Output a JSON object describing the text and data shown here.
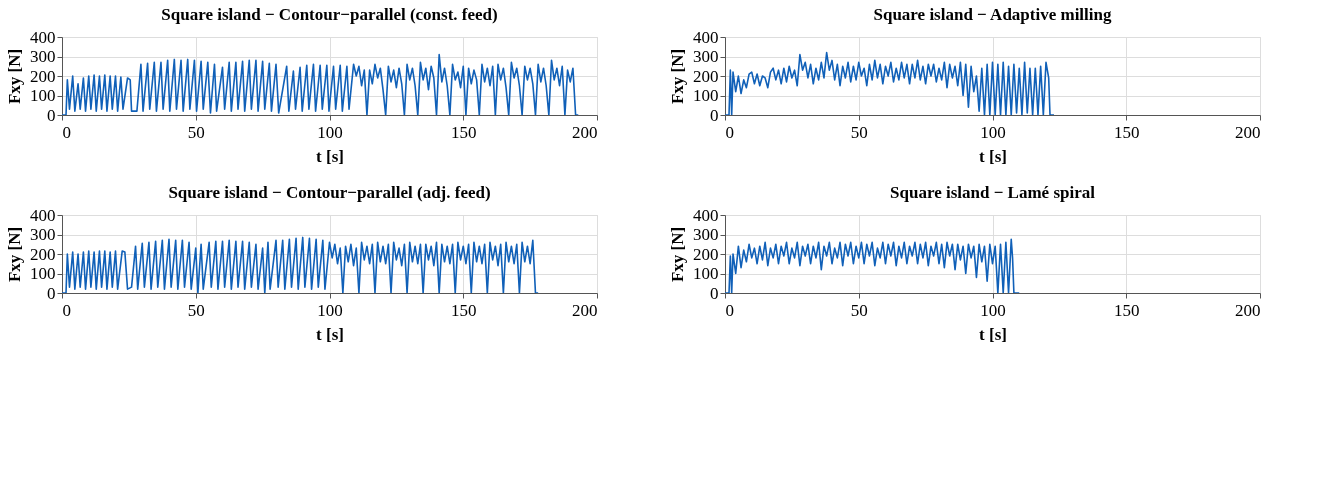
{
  "chart_data": [
    {
      "type": "line",
      "title": "Square island − Contour−parallel (const. feed)",
      "xlabel": "t [s]",
      "ylabel": "Fxy [N]",
      "xlim": [
        0,
        200
      ],
      "xticks": [
        0,
        50,
        100,
        150,
        200
      ],
      "ylim": [
        0,
        400
      ],
      "yticks": [
        0,
        100,
        200,
        300,
        400
      ],
      "grid": true,
      "series": [
        {
          "color": "#1060b8",
          "x": [
            0,
            1.5,
            2,
            2.8,
            4,
            4.8,
            6,
            6.8,
            8,
            8.8,
            10,
            10.8,
            12,
            12.8,
            14,
            14.8,
            16,
            16.8,
            18,
            18.8,
            20,
            20.8,
            22,
            22.8,
            24.5,
            25.5,
            26,
            28,
            29.5,
            30.3,
            32,
            32.8,
            34.5,
            35.3,
            37,
            37.8,
            39.5,
            40.3,
            42,
            42.8,
            44.5,
            45.3,
            47,
            47.8,
            49.5,
            50.3,
            52,
            52.8,
            54.5,
            55.5,
            57,
            57.8,
            60,
            60.8,
            62.5,
            63.3,
            65,
            65.8,
            67.5,
            68.3,
            70,
            70.8,
            72.5,
            73.3,
            75,
            75.8,
            77.5,
            78.3,
            80,
            81,
            84,
            84.8,
            86.5,
            87.3,
            89,
            89.8,
            91.5,
            92.3,
            94,
            94.8,
            96.5,
            97.3,
            99,
            99.8,
            101.5,
            102.3,
            104,
            104.8,
            106.5,
            107.3,
            109,
            110,
            111,
            112,
            113,
            114,
            115,
            116,
            117,
            118,
            119,
            120,
            121,
            122,
            123,
            124,
            125,
            126,
            127,
            128,
            129,
            130,
            131,
            132,
            133,
            134,
            135,
            136,
            137,
            138,
            139,
            140,
            141,
            142,
            143,
            144,
            145,
            146,
            147,
            148,
            149,
            150,
            151,
            152,
            153,
            154,
            155,
            156,
            157,
            158,
            159,
            160,
            161,
            162,
            163,
            164,
            165,
            166,
            167,
            168,
            169,
            170,
            171,
            172,
            173,
            174,
            175,
            176,
            177,
            178,
            179,
            180,
            181,
            182,
            183,
            184,
            185,
            186,
            187,
            188,
            189,
            190,
            191,
            192,
            193
          ],
          "values": [
            0,
            0,
            180,
            30,
            200,
            20,
            160,
            30,
            190,
            20,
            200,
            30,
            205,
            20,
            200,
            30,
            205,
            20,
            200,
            30,
            200,
            20,
            195,
            30,
            190,
            180,
            20,
            20,
            260,
            20,
            265,
            30,
            270,
            20,
            270,
            30,
            280,
            20,
            285,
            30,
            280,
            20,
            285,
            30,
            280,
            20,
            275,
            30,
            270,
            10,
            260,
            20,
            245,
            30,
            270,
            20,
            270,
            30,
            275,
            20,
            280,
            30,
            280,
            20,
            275,
            30,
            265,
            20,
            260,
            10,
            250,
            20,
            225,
            30,
            245,
            20,
            255,
            30,
            260,
            20,
            255,
            30,
            255,
            20,
            250,
            30,
            255,
            20,
            250,
            30,
            260,
            200,
            250,
            150,
            230,
            0,
            230,
            160,
            260,
            190,
            240,
            130,
            0,
            250,
            170,
            230,
            140,
            240,
            160,
            0,
            260,
            180,
            240,
            150,
            0,
            270,
            180,
            240,
            130,
            250,
            190,
            0,
            310,
            170,
            240,
            150,
            0,
            260,
            180,
            220,
            140,
            250,
            0,
            240,
            160,
            230,
            180,
            0,
            260,
            170,
            240,
            150,
            250,
            0,
            260,
            180,
            240,
            140,
            0,
            270,
            190,
            240,
            150,
            0,
            250,
            180,
            240,
            160,
            0,
            260,
            170,
            240,
            150,
            0,
            280,
            180,
            240,
            150,
            250,
            0,
            230,
            170,
            240,
            0,
            0
          ]
        }
      ]
    },
    {
      "type": "line",
      "title": "Square island − Adaptive milling",
      "xlabel": "t [s]",
      "ylabel": "Fxy [N]",
      "xlim": [
        0,
        200
      ],
      "xticks": [
        0,
        50,
        100,
        150,
        200
      ],
      "ylim": [
        0,
        400
      ],
      "yticks": [
        0,
        100,
        200,
        300,
        400
      ],
      "grid": true,
      "series": [
        {
          "color": "#1060b8",
          "x": [
            0,
            1.5,
            2,
            2.5,
            3,
            4,
            5,
            6,
            7,
            8,
            9,
            10,
            11,
            12,
            13,
            14,
            15,
            16,
            17,
            18,
            19,
            20,
            21,
            22,
            23,
            24,
            25,
            26,
            27,
            28,
            29,
            30,
            31,
            32,
            33,
            34,
            35,
            36,
            37,
            38,
            39,
            40,
            41,
            42,
            43,
            44,
            45,
            46,
            47,
            48,
            49,
            50,
            51,
            52,
            53,
            54,
            55,
            56,
            57,
            58,
            59,
            60,
            61,
            62,
            63,
            64,
            65,
            66,
            67,
            68,
            69,
            70,
            71,
            72,
            73,
            74,
            75,
            76,
            77,
            78,
            79,
            80,
            81,
            82,
            83,
            84,
            85,
            86,
            87,
            88,
            89,
            90,
            91,
            92,
            93,
            94,
            95,
            96,
            97,
            98,
            99,
            100,
            101,
            102,
            103,
            104,
            105,
            106,
            107,
            108,
            109,
            110,
            111,
            112,
            113,
            114,
            115,
            116,
            117,
            118,
            119,
            120,
            121,
            121.5,
            123
          ],
          "values": [
            0,
            0,
            230,
            0,
            220,
            120,
            200,
            110,
            180,
            140,
            210,
            220,
            160,
            210,
            150,
            200,
            190,
            140,
            220,
            240,
            180,
            230,
            160,
            240,
            170,
            250,
            190,
            230,
            150,
            310,
            230,
            270,
            190,
            260,
            160,
            240,
            180,
            270,
            190,
            320,
            230,
            280,
            180,
            260,
            150,
            250,
            190,
            270,
            170,
            250,
            180,
            270,
            200,
            240,
            150,
            260,
            180,
            280,
            190,
            260,
            160,
            250,
            200,
            270,
            170,
            240,
            180,
            270,
            190,
            260,
            160,
            260,
            190,
            280,
            180,
            250,
            160,
            260,
            200,
            260,
            170,
            240,
            180,
            270,
            140,
            260,
            190,
            250,
            150,
            270,
            100,
            260,
            40,
            250,
            120,
            200,
            20,
            240,
            0,
            260,
            0,
            270,
            0,
            260,
            0,
            270,
            0,
            250,
            0,
            260,
            10,
            240,
            0,
            270,
            10,
            240,
            0,
            240,
            0,
            250,
            0,
            270,
            190,
            0,
            0
          ]
        }
      ]
    },
    {
      "type": "line",
      "title": "Square island − Contour−parallel (adj. feed)",
      "xlabel": "t [s]",
      "ylabel": "Fxy [N]",
      "xlim": [
        0,
        200
      ],
      "xticks": [
        0,
        50,
        100,
        150,
        200
      ],
      "ylim": [
        0,
        400
      ],
      "yticks": [
        0,
        100,
        200,
        300,
        400
      ],
      "grid": true,
      "series": [
        {
          "color": "#1060b8",
          "x": [
            0,
            1.5,
            2,
            2.8,
            4,
            4.8,
            6,
            6.8,
            8,
            8.8,
            10,
            10.8,
            12,
            12.8,
            14,
            14.8,
            16,
            16.8,
            18,
            18.8,
            20,
            20.8,
            22.5,
            23.5,
            24.5,
            26,
            27.5,
            28.3,
            30,
            30.8,
            32.5,
            33.3,
            35,
            35.8,
            37.5,
            38.3,
            40,
            40.8,
            42.5,
            43.3,
            45,
            45.8,
            47.5,
            48.3,
            50,
            50.8,
            52,
            52.8,
            55,
            55.8,
            57.5,
            58.3,
            60,
            60.8,
            62.5,
            63.3,
            65,
            65.8,
            67.5,
            68.3,
            70,
            70.8,
            72.5,
            73.3,
            75,
            75.8,
            77,
            77.8,
            80,
            80.8,
            82.5,
            83.3,
            85,
            85.8,
            87.5,
            88.3,
            90,
            90.8,
            92.5,
            93.3,
            95,
            95.8,
            97.5,
            98.3,
            100,
            101,
            102,
            103,
            104,
            105,
            106,
            107,
            108,
            109,
            110,
            111,
            112,
            113,
            114,
            115,
            116,
            117,
            118,
            119,
            120,
            121,
            122,
            123,
            124,
            125,
            126,
            127,
            128,
            129,
            130,
            131,
            132,
            133,
            134,
            135,
            136,
            137,
            138,
            139,
            140,
            141,
            142,
            143,
            144,
            145,
            146,
            147,
            148,
            149,
            150,
            151,
            152,
            153,
            154,
            155,
            156,
            157,
            158,
            159,
            160,
            161,
            162,
            163,
            164,
            165,
            166,
            167,
            168,
            169,
            170,
            171,
            172,
            173,
            174,
            175,
            176,
            177,
            178
          ],
          "values": [
            0,
            0,
            200,
            30,
            210,
            20,
            200,
            30,
            210,
            20,
            215,
            30,
            210,
            20,
            215,
            30,
            215,
            20,
            210,
            30,
            215,
            20,
            215,
            210,
            20,
            30,
            240,
            20,
            255,
            30,
            260,
            20,
            265,
            30,
            270,
            20,
            275,
            30,
            270,
            20,
            270,
            30,
            260,
            20,
            230,
            0,
            250,
            20,
            260,
            30,
            265,
            20,
            265,
            30,
            270,
            20,
            265,
            30,
            265,
            20,
            260,
            30,
            250,
            20,
            230,
            0,
            260,
            20,
            270,
            30,
            270,
            20,
            275,
            30,
            280,
            20,
            285,
            30,
            280,
            20,
            275,
            30,
            270,
            20,
            260,
            180,
            250,
            150,
            230,
            0,
            240,
            160,
            250,
            140,
            230,
            0,
            260,
            170,
            240,
            150,
            250,
            0,
            260,
            160,
            240,
            150,
            250,
            0,
            260,
            170,
            230,
            140,
            250,
            0,
            260,
            160,
            240,
            150,
            250,
            0,
            250,
            170,
            240,
            140,
            260,
            0,
            250,
            160,
            240,
            150,
            250,
            0,
            260,
            170,
            240,
            150,
            250,
            0,
            260,
            160,
            240,
            150,
            250,
            0,
            260,
            170,
            240,
            140,
            250,
            0,
            260,
            160,
            240,
            150,
            250,
            0,
            260,
            160,
            240,
            150,
            270,
            0,
            0
          ]
        }
      ]
    },
    {
      "type": "line",
      "title": "Square island − Lamé spiral",
      "xlabel": "t [s]",
      "ylabel": "Fxy [N]",
      "xlim": [
        0,
        200
      ],
      "xticks": [
        0,
        50,
        100,
        150,
        200
      ],
      "ylim": [
        0,
        400
      ],
      "yticks": [
        0,
        100,
        200,
        300,
        400
      ],
      "grid": true,
      "series": [
        {
          "color": "#1060b8",
          "x": [
            0,
            1.5,
            2,
            2.5,
            3,
            4,
            5,
            6,
            7,
            8,
            9,
            10,
            11,
            12,
            13,
            14,
            15,
            16,
            17,
            18,
            19,
            20,
            21,
            22,
            23,
            24,
            25,
            26,
            27,
            28,
            29,
            30,
            31,
            32,
            33,
            34,
            35,
            36,
            37,
            38,
            39,
            40,
            41,
            42,
            43,
            44,
            45,
            46,
            47,
            48,
            49,
            50,
            51,
            52,
            53,
            54,
            55,
            56,
            57,
            58,
            59,
            60,
            61,
            62,
            63,
            64,
            65,
            66,
            67,
            68,
            69,
            70,
            71,
            72,
            73,
            74,
            75,
            76,
            77,
            78,
            79,
            80,
            81,
            82,
            83,
            84,
            85,
            86,
            87,
            88,
            89,
            90,
            91,
            92,
            93,
            94,
            95,
            96,
            97,
            98,
            99,
            100,
            101,
            102,
            103,
            104,
            105,
            106,
            107,
            107.5,
            108,
            110
          ],
          "values": [
            0,
            0,
            190,
            0,
            200,
            100,
            240,
            130,
            220,
            160,
            250,
            180,
            230,
            150,
            240,
            170,
            260,
            140,
            230,
            180,
            250,
            150,
            240,
            190,
            260,
            150,
            230,
            180,
            260,
            140,
            240,
            190,
            250,
            150,
            240,
            180,
            260,
            120,
            240,
            190,
            260,
            150,
            230,
            180,
            260,
            140,
            250,
            190,
            260,
            150,
            240,
            180,
            260,
            150,
            250,
            190,
            260,
            140,
            230,
            180,
            260,
            150,
            250,
            190,
            260,
            140,
            240,
            180,
            260,
            150,
            240,
            190,
            260,
            150,
            250,
            180,
            260,
            140,
            240,
            190,
            260,
            150,
            250,
            130,
            260,
            190,
            250,
            120,
            250,
            170,
            240,
            100,
            250,
            180,
            240,
            80,
            250,
            160,
            240,
            60,
            250,
            150,
            240,
            0,
            250,
            0,
            260,
            0,
            275,
            180,
            0,
            0
          ]
        }
      ]
    }
  ]
}
